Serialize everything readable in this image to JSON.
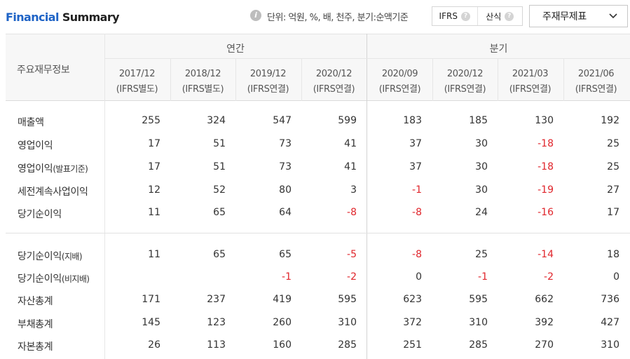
{
  "header": {
    "title_part1": "Financial",
    "title_part2": "Summary",
    "info_icon": "i",
    "unit_text": "단위: 억원, %, 배, 천주, 분기:순액기준",
    "toggle": [
      {
        "label": "IFRS",
        "help": "?"
      },
      {
        "label": "산식",
        "help": "?"
      }
    ],
    "dropdown_label": "주재무제표"
  },
  "table": {
    "corner_label": "주요재무정보",
    "groups": [
      "연간",
      "분기"
    ],
    "columns": [
      {
        "period": "2017/12",
        "basis": "(IFRS별도)"
      },
      {
        "period": "2018/12",
        "basis": "(IFRS별도)"
      },
      {
        "period": "2019/12",
        "basis": "(IFRS연결)"
      },
      {
        "period": "2020/12",
        "basis": "(IFRS연결)"
      },
      {
        "period": "2020/09",
        "basis": "(IFRS연결)"
      },
      {
        "period": "2020/12",
        "basis": "(IFRS연결)"
      },
      {
        "period": "2021/03",
        "basis": "(IFRS연결)"
      },
      {
        "period": "2021/06",
        "basis": "(IFRS연결)"
      }
    ],
    "rows": [
      {
        "label": "매출액",
        "sub": "",
        "values": [
          "255",
          "324",
          "547",
          "599",
          "183",
          "185",
          "130",
          "192"
        ]
      },
      {
        "label": "영업이익",
        "sub": "",
        "values": [
          "17",
          "51",
          "73",
          "41",
          "37",
          "30",
          "-18",
          "25"
        ]
      },
      {
        "label": "영업이익",
        "sub": "(발표기준)",
        "values": [
          "17",
          "51",
          "73",
          "41",
          "37",
          "30",
          "-18",
          "25"
        ]
      },
      {
        "label": "세전계속사업이익",
        "sub": "",
        "values": [
          "12",
          "52",
          "80",
          "3",
          "-1",
          "30",
          "-19",
          "27"
        ]
      },
      {
        "label": "당기순이익",
        "sub": "",
        "values": [
          "11",
          "65",
          "64",
          "-8",
          "-8",
          "24",
          "-16",
          "17"
        ]
      },
      {
        "label": "당기순이익",
        "sub": "(지배)",
        "values": [
          "11",
          "65",
          "65",
          "-5",
          "-8",
          "25",
          "-14",
          "18"
        ]
      },
      {
        "label": "당기순이익",
        "sub": "(비지배)",
        "values": [
          "",
          "",
          "-1",
          "-2",
          "0",
          "-1",
          "-2",
          "0"
        ]
      },
      {
        "label": "자산총계",
        "sub": "",
        "values": [
          "171",
          "237",
          "419",
          "595",
          "623",
          "595",
          "662",
          "736"
        ]
      },
      {
        "label": "부채총계",
        "sub": "",
        "values": [
          "145",
          "123",
          "260",
          "310",
          "372",
          "310",
          "392",
          "427"
        ]
      },
      {
        "label": "자본총계",
        "sub": "",
        "values": [
          "26",
          "113",
          "160",
          "285",
          "251",
          "285",
          "270",
          "310"
        ]
      }
    ]
  },
  "colors": {
    "accent": "#1e63c6",
    "negative": "#e0262c"
  }
}
